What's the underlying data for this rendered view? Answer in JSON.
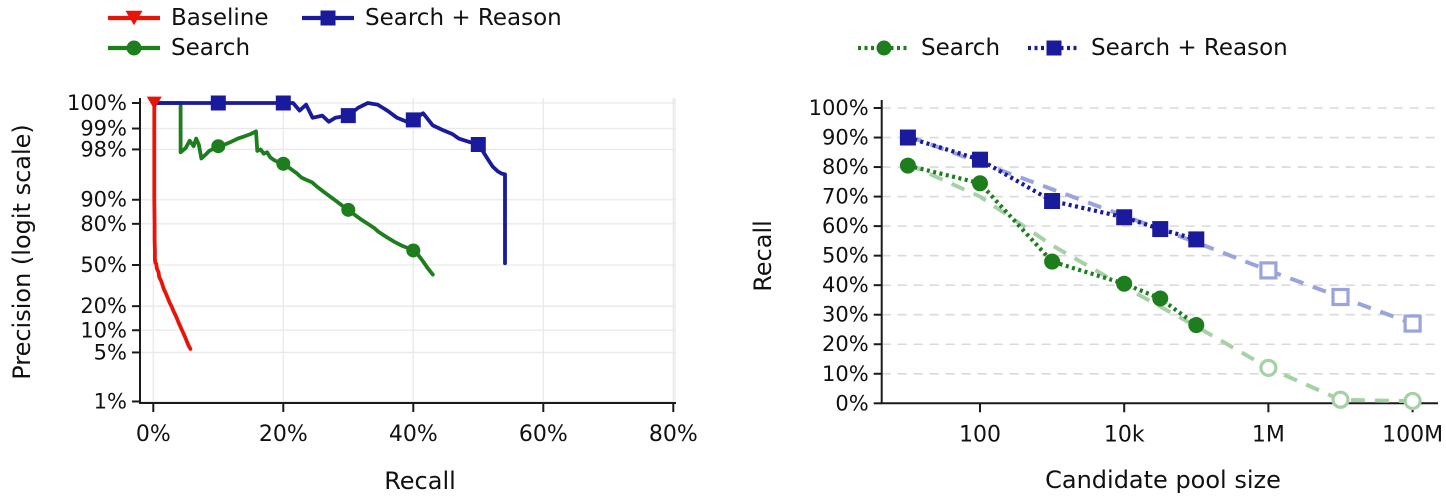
{
  "figure": {
    "background": "#ffffff",
    "spine_color": "#1a1a1a",
    "grid_color_solid": "#e9e9e9",
    "grid_color_dashed": "#d9d9d9"
  },
  "chart_data": [
    {
      "id": "pr_curve",
      "type": "line",
      "title": "",
      "xlabel": "Recall",
      "ylabel": "Precision (logit scale)",
      "x_scale": "linear",
      "y_scale": "logit",
      "xlim": [
        -2,
        80.3
      ],
      "x_tick_values": [
        0,
        20,
        40,
        60,
        80
      ],
      "x_tick_labels": [
        "0%",
        "20%",
        "40%",
        "60%",
        "80%"
      ],
      "y_tick_values": [
        1,
        5,
        10,
        20,
        50,
        80,
        90,
        98,
        99,
        100
      ],
      "y_tick_labels": [
        "1%",
        "5%",
        "10%",
        "20%",
        "50%",
        "80%",
        "90%",
        "98%",
        "99%",
        "100%"
      ],
      "legend_position": "top-left",
      "grid": "solid",
      "series": [
        {
          "name": "Baseline",
          "color": "#e81309",
          "marker": "triangle-down",
          "line_style": "solid",
          "points": [
            [
              0.15,
              99.9
            ],
            [
              0.15,
              90
            ],
            [
              0.2,
              80
            ],
            [
              0.2,
              70
            ],
            [
              0.25,
              62
            ],
            [
              0.25,
              55
            ],
            [
              0.3,
              52
            ],
            [
              0.45,
              51
            ],
            [
              0.5,
              49
            ],
            [
              0.55,
              47
            ],
            [
              0.8,
              44
            ],
            [
              0.9,
              40
            ],
            [
              1.2,
              37
            ],
            [
              1.4,
              34
            ],
            [
              1.6,
              31
            ],
            [
              1.9,
              28
            ],
            [
              2.2,
              25
            ],
            [
              2.5,
              22
            ],
            [
              2.8,
              20
            ],
            [
              3.1,
              17.5
            ],
            [
              3.5,
              15
            ],
            [
              3.9,
              12.5
            ],
            [
              4.3,
              10.5
            ],
            [
              4.7,
              8.8
            ],
            [
              5.1,
              7.3
            ],
            [
              5.4,
              6.3
            ],
            [
              5.7,
              5.6
            ]
          ],
          "marker_points": [
            [
              0.15,
              99.9
            ]
          ]
        },
        {
          "name": "Search",
          "color": "#1e7e1e",
          "marker": "circle",
          "line_style": "solid",
          "points": [
            [
              0.1,
              99.9
            ],
            [
              4.2,
              99.9
            ],
            [
              4.2,
              97.8
            ],
            [
              5.0,
              98.1
            ],
            [
              5.6,
              98.5
            ],
            [
              6.2,
              98.2
            ],
            [
              6.6,
              98.6
            ],
            [
              7.0,
              98.3
            ],
            [
              7.4,
              97.3
            ],
            [
              8.0,
              97.6
            ],
            [
              8.6,
              97.9
            ],
            [
              9.3,
              98.05
            ],
            [
              10,
              98.2
            ],
            [
              11,
              98.3
            ],
            [
              12,
              98.45
            ],
            [
              13,
              98.6
            ],
            [
              14,
              98.7
            ],
            [
              15,
              98.8
            ],
            [
              15.8,
              98.9
            ],
            [
              16.0,
              97.9
            ],
            [
              16.5,
              98.0
            ],
            [
              17,
              97.7
            ],
            [
              17.5,
              97.8
            ],
            [
              18,
              97.4
            ],
            [
              18.6,
              97.15
            ],
            [
              19.3,
              96.95
            ],
            [
              20,
              96.8
            ],
            [
              21,
              96.3
            ],
            [
              22,
              95.7
            ],
            [
              22.8,
              95.0
            ],
            [
              23.6,
              94.6
            ],
            [
              24.4,
              94.2
            ],
            [
              25.2,
              93.3
            ],
            [
              26,
              92.4
            ],
            [
              27,
              91.2
            ],
            [
              28,
              89.8
            ],
            [
              29,
              88.2
            ],
            [
              30,
              86.5
            ],
            [
              31,
              84.4
            ],
            [
              32,
              82.2
            ],
            [
              33,
              80.0
            ],
            [
              34,
              77.6
            ],
            [
              34.6,
              75.5
            ],
            [
              35.5,
              73
            ],
            [
              36.4,
              70.5
            ],
            [
              37.3,
              68
            ],
            [
              38.2,
              65.8
            ],
            [
              39.1,
              64
            ],
            [
              40,
              62
            ],
            [
              40.8,
              58
            ],
            [
              41.5,
              53
            ],
            [
              42.2,
              47.5
            ],
            [
              43,
              42
            ]
          ],
          "marker_points": [
            [
              10,
              98.2
            ],
            [
              20,
              96.8
            ],
            [
              30,
              86.5
            ],
            [
              40,
              62
            ]
          ]
        },
        {
          "name": "Search + Reason",
          "color": "#1a1a9c",
          "marker": "square",
          "line_style": "solid",
          "points": [
            [
              0.1,
              99.9
            ],
            [
              18.5,
              99.9
            ],
            [
              19.0,
              99.6
            ],
            [
              19.5,
              99.75
            ],
            [
              20,
              99.85
            ],
            [
              21.5,
              99.8
            ],
            [
              22.5,
              99.45
            ],
            [
              23.5,
              99.55
            ],
            [
              24.5,
              99.3
            ],
            [
              26,
              99.35
            ],
            [
              27,
              99.2
            ],
            [
              28,
              99.3
            ],
            [
              30,
              99.35
            ],
            [
              31.5,
              99.5
            ],
            [
              33,
              99.6
            ],
            [
              34.5,
              99.55
            ],
            [
              36,
              99.45
            ],
            [
              37.5,
              99.3
            ],
            [
              39,
              99.2
            ],
            [
              40,
              99.25
            ],
            [
              41.5,
              99.4
            ],
            [
              43,
              99.1
            ],
            [
              44.5,
              98.95
            ],
            [
              46,
              98.8
            ],
            [
              47,
              98.6
            ],
            [
              48,
              98.5
            ],
            [
              49,
              98.4
            ],
            [
              50,
              98.3
            ],
            [
              50.8,
              97.8
            ],
            [
              51.5,
              97.2
            ],
            [
              52.2,
              96.5
            ],
            [
              53,
              95.9
            ],
            [
              53.6,
              95.6
            ],
            [
              54.1,
              95.5
            ],
            [
              54.1,
              51.5
            ]
          ],
          "marker_points": [
            [
              10,
              99.9
            ],
            [
              20,
              99.85
            ],
            [
              30,
              99.35
            ],
            [
              40,
              99.25
            ],
            [
              50,
              98.3
            ]
          ]
        }
      ]
    },
    {
      "id": "scaling_curve",
      "type": "line",
      "title": "",
      "xlabel": "Candidate pool size",
      "ylabel": "Recall",
      "x_scale": "log",
      "y_scale": "linear",
      "ylim": [
        0,
        100
      ],
      "x_tick_values": [
        100,
        10000,
        1000000,
        100000000
      ],
      "x_tick_labels": [
        "100",
        "10k",
        "1M",
        "100M"
      ],
      "y_tick_values": [
        0,
        10,
        20,
        30,
        40,
        50,
        60,
        70,
        80,
        90,
        100
      ],
      "y_tick_labels": [
        "0%",
        "10%",
        "20%",
        "30%",
        "40%",
        "50%",
        "60%",
        "70%",
        "80%",
        "90%",
        "100%"
      ],
      "legend_position": "top-center",
      "grid": "dashed-horizontal",
      "series": [
        {
          "name": "Search",
          "color": "#1e7e1e",
          "trend_color": "#a6d0a6",
          "marker": "circle",
          "line_style": "densely-dotted",
          "points": [
            [
              10,
              80.5
            ],
            [
              100,
              74.5
            ],
            [
              1000,
              48
            ],
            [
              10000,
              40.5
            ],
            [
              31623,
              35.5
            ],
            [
              100000,
              26.5
            ]
          ],
          "marker_points": [
            [
              10,
              80.5
            ],
            [
              100,
              74.5
            ],
            [
              1000,
              48
            ],
            [
              10000,
              40.5
            ],
            [
              31623,
              35.5
            ],
            [
              100000,
              26.5
            ]
          ],
          "trend_points": [
            [
              10,
              81
            ],
            [
              100,
              70
            ],
            [
              1000,
              53.5
            ],
            [
              10000,
              39.5
            ],
            [
              100000,
              26
            ],
            [
              1000000,
              12
            ],
            [
              10000000,
              1.2
            ],
            [
              100000000,
              0.7
            ]
          ],
          "extrapolated_points": [
            [
              1000000,
              12
            ],
            [
              10000000,
              1.2
            ],
            [
              100000000,
              0.8
            ]
          ]
        },
        {
          "name": "Search + Reason",
          "color": "#1a1a9c",
          "trend_color": "#9aa3dc",
          "marker": "square",
          "line_style": "densely-dotted",
          "points": [
            [
              10,
              90
            ],
            [
              100,
              82.5
            ],
            [
              1000,
              68.5
            ],
            [
              10000,
              63
            ],
            [
              31623,
              59
            ],
            [
              100000,
              55.5
            ]
          ],
          "marker_points": [
            [
              10,
              90
            ],
            [
              100,
              82.5
            ],
            [
              1000,
              68.5
            ],
            [
              10000,
              63
            ],
            [
              31623,
              59
            ],
            [
              100000,
              55.5
            ]
          ],
          "trend_points": [
            [
              10,
              90.5
            ],
            [
              100,
              81.5
            ],
            [
              1000,
              72.5
            ],
            [
              10000,
              63.5
            ],
            [
              100000,
              54.5
            ],
            [
              1000000,
              45
            ],
            [
              10000000,
              36
            ],
            [
              100000000,
              27
            ]
          ],
          "extrapolated_points": [
            [
              1000000,
              45
            ],
            [
              10000000,
              36
            ],
            [
              100000000,
              27
            ]
          ]
        }
      ]
    }
  ]
}
